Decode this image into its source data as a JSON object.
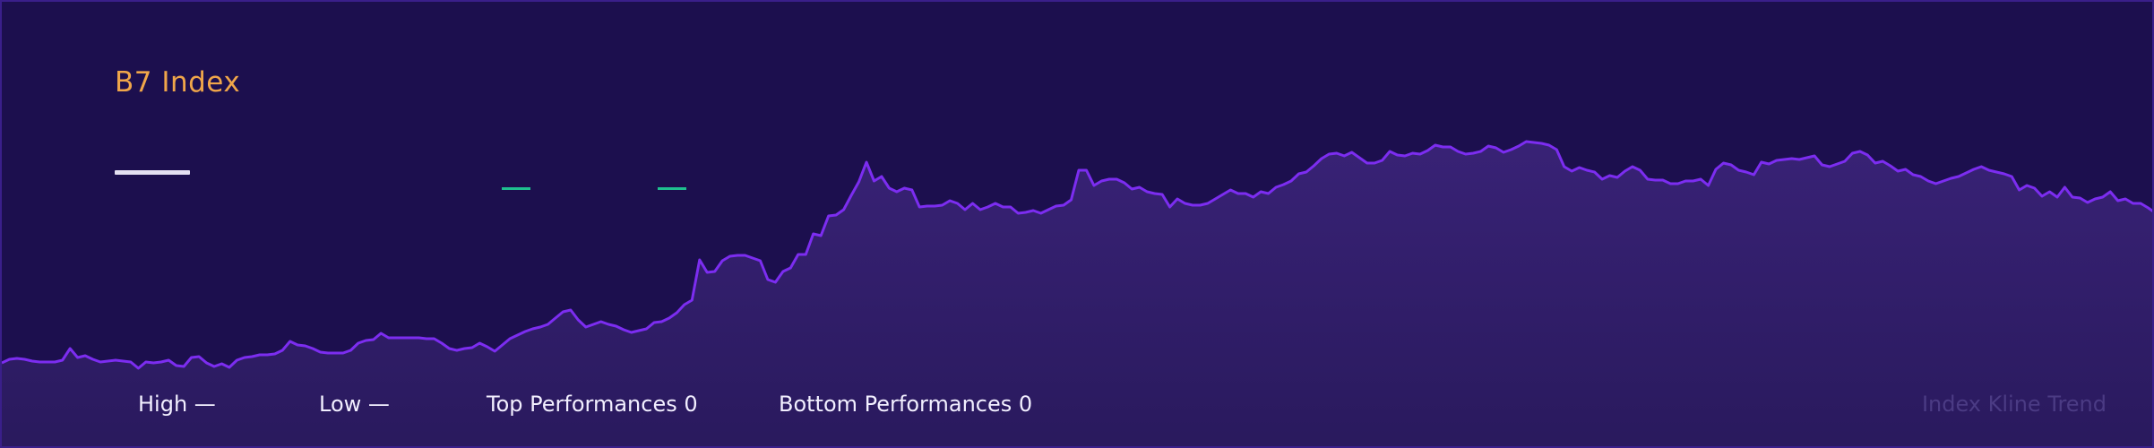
{
  "header": {
    "title": "B7 Index",
    "price_value": "",
    "change_up_value": "",
    "change_down_value": ""
  },
  "footer": {
    "high_label": "High —",
    "low_label": "Low —",
    "top_label": "Top Performances 0",
    "bottom_label": "Bottom Performances 0",
    "trend_label": "Index Kline Trend"
  },
  "colors": {
    "background": "#1c0f4e",
    "line": "#7c2df0",
    "fill_top": "#3a2378",
    "fill_bottom": "#2a1a5e",
    "title": "#f0a64a",
    "accent_green": "#1fbf8f",
    "text": "#f2efff",
    "muted": "#4b3b84"
  },
  "chart_data": {
    "type": "area",
    "title": "B7 Index",
    "xlabel": "",
    "ylabel": "",
    "grid": false,
    "legend": "none",
    "ylim": [
      0,
      500
    ],
    "values": [
      97,
      101,
      102,
      101,
      99,
      98,
      98,
      98,
      100,
      113,
      103,
      105,
      101,
      98,
      99,
      100,
      99,
      98,
      91,
      98,
      97,
      98,
      100,
      94,
      93,
      103,
      104,
      97,
      93,
      96,
      92,
      100,
      103,
      104,
      106,
      106,
      107,
      111,
      121,
      117,
      116,
      113,
      109,
      108,
      108,
      108,
      111,
      119,
      122,
      123,
      130,
      125,
      125,
      125,
      125,
      125,
      124,
      124,
      119,
      113,
      111,
      113,
      114,
      119,
      115,
      110,
      117,
      124,
      128,
      132,
      135,
      137,
      140,
      147,
      154,
      156,
      145,
      137,
      140,
      143,
      140,
      138,
      134,
      131,
      133,
      135,
      142,
      143,
      147,
      153,
      162,
      167,
      212,
      198,
      199,
      211,
      216,
      217,
      217,
      214,
      211,
      190,
      187,
      199,
      203,
      218,
      218,
      241,
      239,
      261,
      262,
      268,
      284,
      299,
      321,
      300,
      305,
      292,
      288,
      292,
      290,
      271,
      272,
      272,
      273,
      278,
      275,
      268,
      275,
      268,
      271,
      275,
      271,
      271,
      264,
      265,
      267,
      264,
      268,
      272,
      273,
      279,
      312,
      312,
      295,
      300,
      302,
      302,
      298,
      291,
      293,
      288,
      286,
      285,
      271,
      280,
      275,
      273,
      273,
      275,
      280,
      285,
      290,
      286,
      286,
      282,
      288,
      286,
      293,
      296,
      300,
      308,
      310,
      317,
      325,
      330,
      331,
      328,
      332,
      326,
      320,
      320,
      323,
      333,
      329,
      328,
      331,
      330,
      334,
      340,
      338,
      338,
      333,
      330,
      331,
      333,
      339,
      337,
      332,
      335,
      339,
      344,
      343,
      342,
      340,
      335,
      316,
      311,
      315,
      312,
      310,
      302,
      306,
      304,
      311,
      316,
      312,
      302,
      301,
      301,
      297,
      297,
      300,
      300,
      302,
      295,
      313,
      320,
      318,
      312,
      310,
      307,
      321,
      319,
      323,
      324,
      325,
      324,
      326,
      328,
      318,
      316,
      319,
      322,
      331,
      333,
      329,
      320,
      322,
      317,
      311,
      313,
      307,
      305,
      300,
      297,
      300,
      303,
      305,
      309,
      313,
      316,
      312,
      310,
      308,
      305,
      290,
      295,
      292,
      283,
      288,
      282,
      293,
      282,
      281,
      276,
      280,
      282,
      288,
      278,
      280,
      275,
      275,
      270,
      264
    ]
  }
}
